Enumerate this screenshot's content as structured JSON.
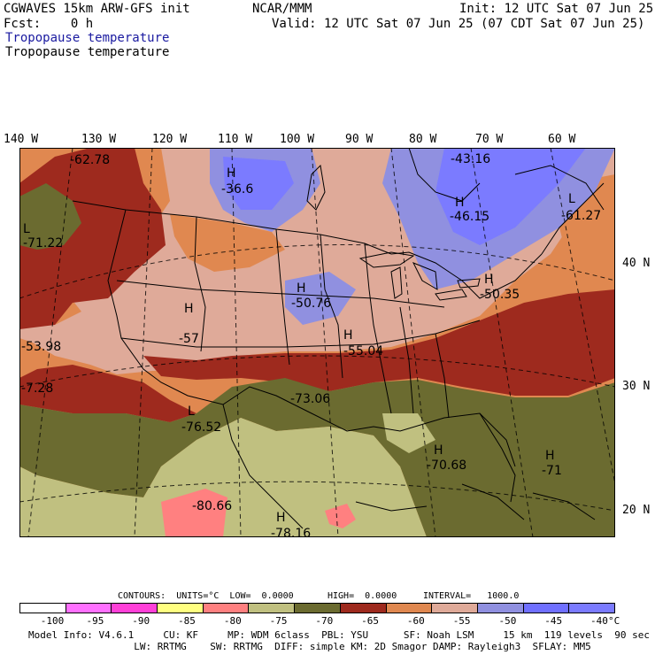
{
  "header": {
    "line1_left": "CGWAVES 15km ARW-GFS init",
    "line2_left": "Fcst:    0 h",
    "center": "NCAR/MMM",
    "init": "Init: 12 UTC Sat 07 Jun 25",
    "valid": "Valid: 12 UTC Sat 07 Jun 25 (07 CDT Sat 07 Jun 25)",
    "field_title_1": "Tropopause temperature",
    "field_title_2": "Tropopause temperature"
  },
  "longitudes": [
    "140 W",
    "130 W",
    "120 W",
    "110 W",
    "100 W",
    "90 W",
    "80 W",
    "70 W",
    "60 W"
  ],
  "latitudes": [
    "40 N",
    "30 N",
    "20 N"
  ],
  "map_labels": {
    "h1": "H",
    "v1": "-36.6",
    "v2": "-43.16",
    "h3": "H",
    "v3": "-46.15",
    "l4": "L",
    "v4": "-61.27",
    "v5": "-62.78",
    "l6": "L",
    "v6": "-71.22",
    "h7": "H",
    "v7": "-50.76",
    "h8": "H",
    "v8": "-50.35",
    "h9": "H",
    "v9": "-57",
    "v10": "-53.98",
    "h11": "H",
    "v11": "-55.04",
    "v12": "-7.28",
    "v13": "-73.06",
    "l14": "L",
    "v14": "-76.52",
    "h15": "H",
    "v15": "-70.68",
    "h16": "H",
    "v16": "-71",
    "v17": "-80.66",
    "h18": "H",
    "v18": "-78.16"
  },
  "contour_info": {
    "contours": "CONTOURS:  UNITS=°C  LOW=  0.0000",
    "high": "HIGH=  0.0000",
    "interval": "INTERVAL=   1000.0"
  },
  "colorbar": {
    "colors": [
      "#ffffff",
      "#ff70ff",
      "#ff40d8",
      "#ffff80",
      "#ff8080",
      "#c0c080",
      "#6b6b30",
      "#9e2a1e",
      "#e08850",
      "#dfaa99",
      "#9090e0",
      "#7070ff",
      "#7b7bff"
    ],
    "labels": [
      "-100",
      "-95",
      "-90",
      "-85",
      "-80",
      "-75",
      "-70",
      "-65",
      "-60",
      "-55",
      "-50",
      "-45",
      "-40",
      "°C"
    ]
  },
  "footer": {
    "line1": "Model Info: V4.6.1     CU: KF     MP: WDM 6class  PBL: YSU      SF: Noah LSM     15 km  119 levels  90 sec",
    "line2": "                  LW: RRTMG    SW: RRTMG  DIFF: simple KM: 2D Smagor DAMP: Rayleigh3  SFLAY: MM5"
  }
}
